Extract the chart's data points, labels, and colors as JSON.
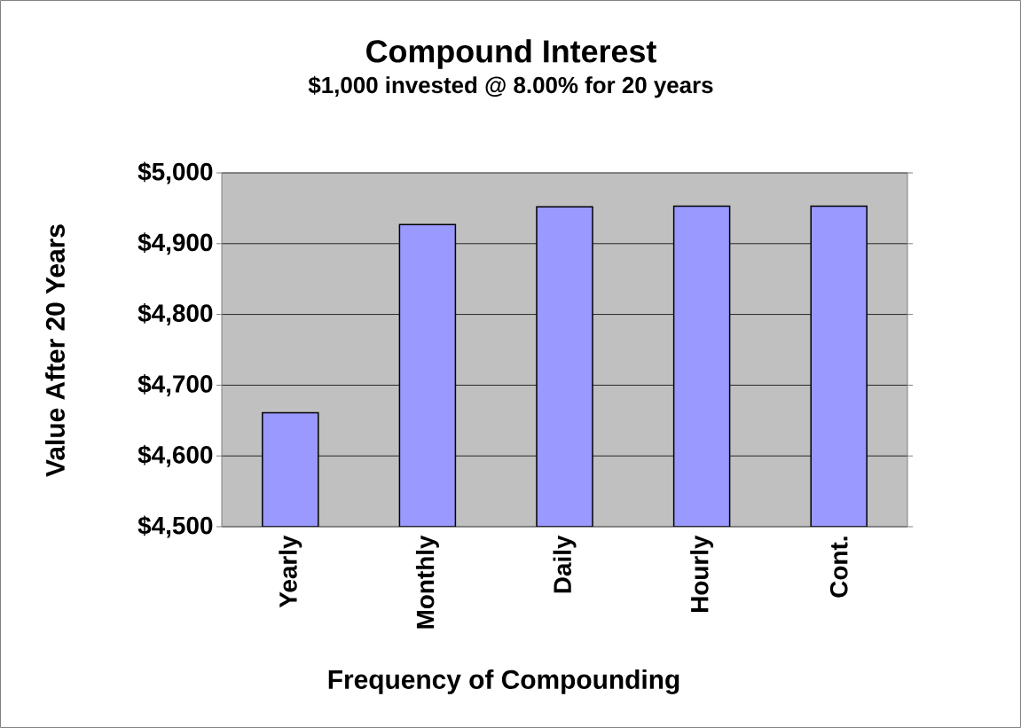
{
  "chart_data": {
    "type": "bar",
    "title": "Compound Interest",
    "subtitle": "$1,000 invested @ 8.00% for 20 years",
    "xlabel": "Frequency of Compounding",
    "ylabel": "Value After 20 Years",
    "categories": [
      "Yearly",
      "Monthly",
      "Daily",
      "Hourly",
      "Cont."
    ],
    "values": [
      4661,
      4927,
      4952,
      4953,
      4953
    ],
    "color": "#9999ff",
    "ylim": [
      4500,
      5000
    ],
    "yticks": [
      {
        "value": 4500,
        "label": "$4,500"
      },
      {
        "value": 4600,
        "label": "$4,600"
      },
      {
        "value": 4700,
        "label": "$4,700"
      },
      {
        "value": 4800,
        "label": "$4,800"
      },
      {
        "value": 4900,
        "label": "$4,900"
      },
      {
        "value": 5000,
        "label": "$5,000"
      }
    ],
    "grid": "y"
  }
}
